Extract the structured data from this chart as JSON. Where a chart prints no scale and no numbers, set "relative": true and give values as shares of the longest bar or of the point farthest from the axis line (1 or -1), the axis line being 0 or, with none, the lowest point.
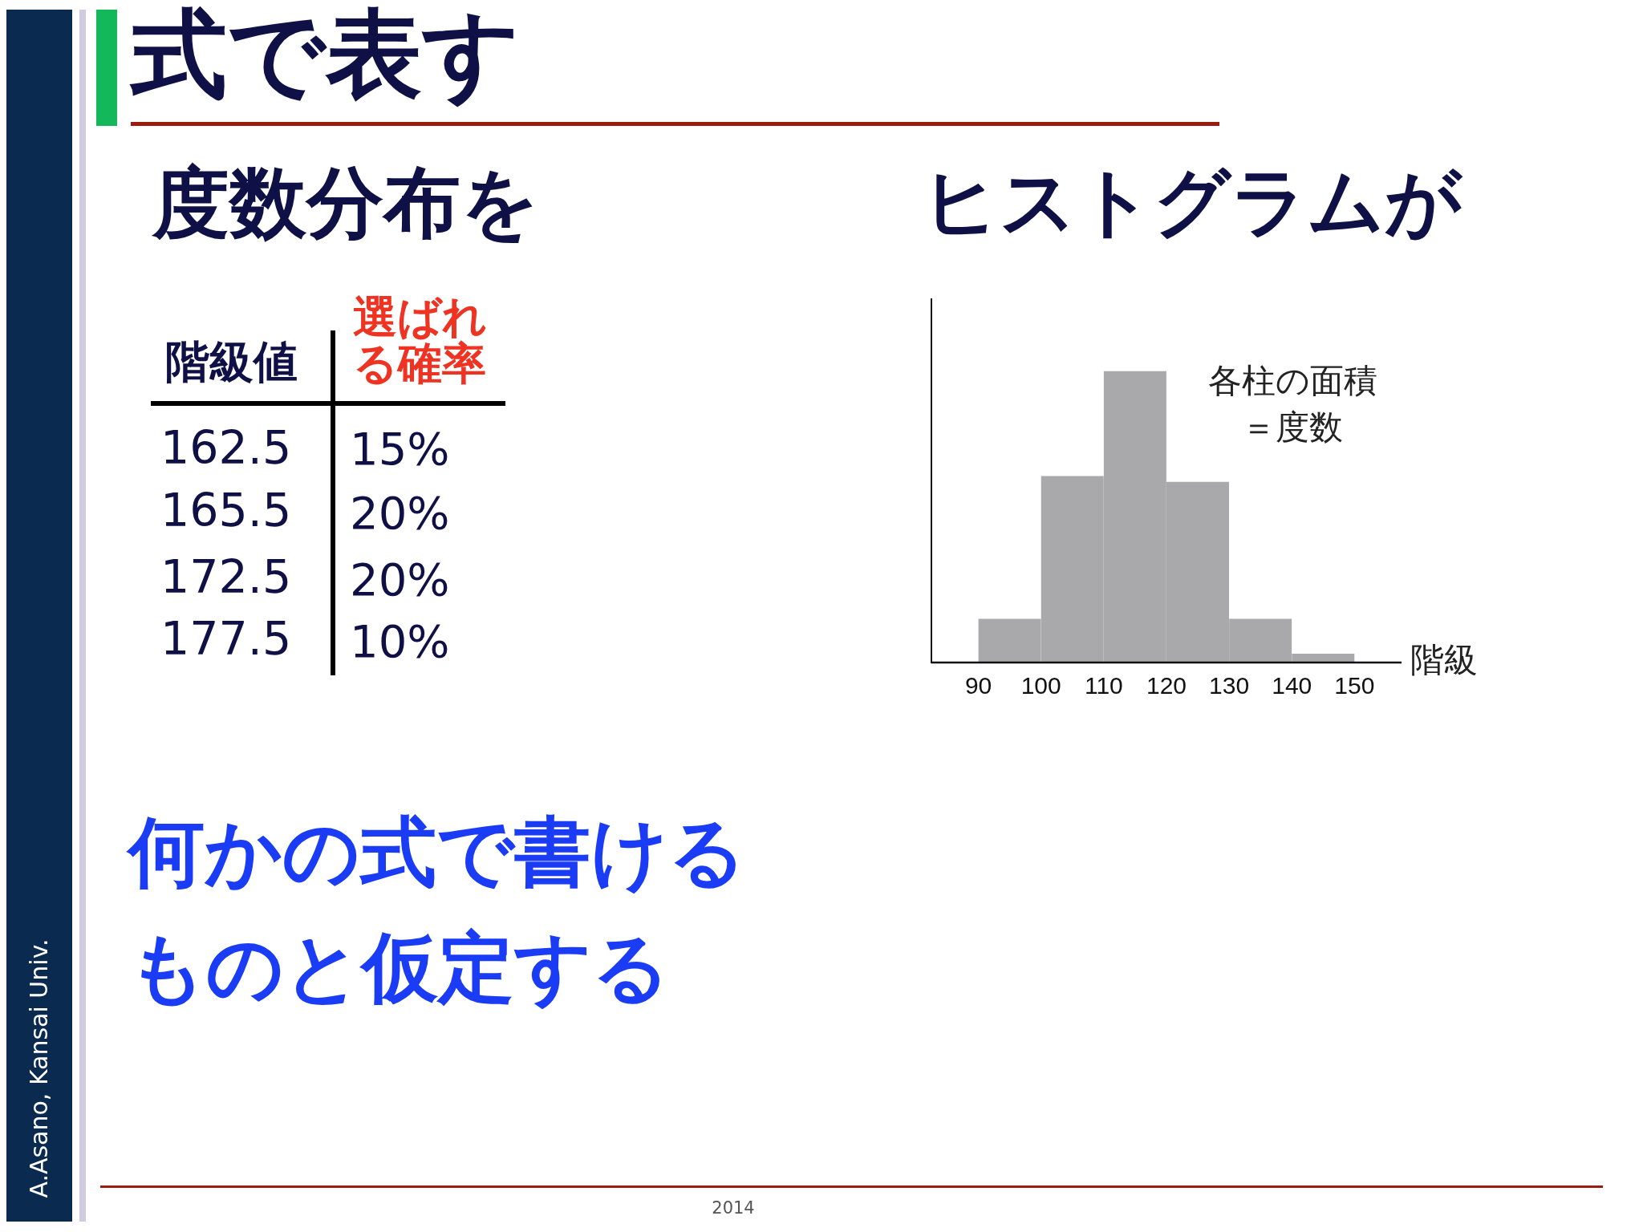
{
  "chart_data": {
    "type": "bar",
    "title": "式で表す",
    "xlabel": "階級",
    "x": [
      95,
      105,
      115,
      125,
      135,
      145
    ],
    "values": [
      0.15,
      0.64,
      1,
      0.62,
      0.15,
      0.03
    ],
    "color": "#a9a9ab",
    "relative": true,
    "xlim": [
      82.5,
      157.5
    ],
    "xticks": [
      90,
      100,
      110,
      120,
      130,
      140,
      150
    ],
    "annotations": [
      "度数分布を",
      "ヒストグラムが",
      "階級値",
      "選ばれる確率",
      "162.5",
      "15%",
      "165.5",
      "20%",
      "172.5",
      "20%",
      "177.5",
      "10%",
      "各柱の面積＝度数",
      "何かの式で書けるものと仮定する",
      "A.Asano, Kansai Univ.",
      "2014"
    ]
  }
}
